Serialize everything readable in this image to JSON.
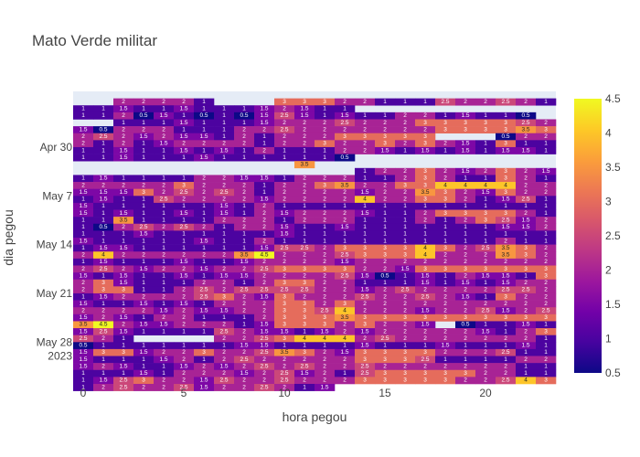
{
  "chart_data": {
    "type": "heatmap",
    "title": "Mato Verde militar",
    "xlabel": "hora pegou",
    "ylabel": "dia pegou",
    "x": [
      0,
      1,
      2,
      3,
      4,
      5,
      6,
      7,
      8,
      9,
      10,
      11,
      12,
      13,
      14,
      15,
      16,
      17,
      18,
      19,
      20,
      21,
      22,
      23
    ],
    "xlim": [
      -0.5,
      23.5
    ],
    "x_ticks": [
      0,
      5,
      10,
      15,
      20
    ],
    "y_tick_labels": [
      {
        "day": 30,
        "label": "Apr 30"
      },
      {
        "day": 37,
        "label": "May 7"
      },
      {
        "day": 44,
        "label": "May 14"
      },
      {
        "day": 51,
        "label": "May 21"
      },
      {
        "day": 58,
        "label": "May 28"
      },
      {
        "day": 58,
        "label": "2023"
      }
    ],
    "y_note": "days counted from Apr 0 (Apr 30 = 30, May 7 = 37)",
    "ylim_days": [
      22,
      64
    ],
    "colorscale": [
      "#0d0887",
      "#46039f",
      "#7201a8",
      "#9c179e",
      "#bd3786",
      "#d8576b",
      "#ed7953",
      "#fb9f3a",
      "#fdca26",
      "#f0f921"
    ],
    "zmin": 0.5,
    "zmax": 4.5,
    "colorbar_ticks": [
      "0.5",
      "1",
      "1.5",
      "2",
      "2.5",
      "3",
      "3.5",
      "4",
      "4.5"
    ],
    "rows": [
      {
        "day": 23.5,
        "v": [
          null,
          null,
          2,
          2,
          2,
          2,
          1,
          null,
          null,
          null,
          3,
          3,
          3,
          2,
          2,
          1,
          1,
          1,
          2.5,
          2,
          2,
          2.5,
          2,
          1
        ]
      },
      {
        "day": 24.5,
        "v": [
          1,
          1,
          1.5,
          1,
          1,
          1.5,
          1,
          1,
          1,
          1.5,
          2,
          1.5,
          1,
          1,
          null,
          null,
          null,
          null,
          null,
          null,
          null,
          null,
          null,
          null
        ]
      },
      {
        "day": 25.5,
        "v": [
          1,
          1,
          2,
          0.5,
          1.5,
          1,
          0.5,
          1,
          0.5,
          1.5,
          2.5,
          1.5,
          1,
          1.5,
          1,
          1,
          2,
          2,
          1,
          1.5,
          1,
          1,
          0.5,
          null
        ]
      },
      {
        "day": 26.5,
        "v": [
          null,
          null,
          1,
          1,
          1,
          1.5,
          1,
          1,
          1,
          1.5,
          2,
          2,
          2,
          2.5,
          2,
          2,
          2,
          3,
          3,
          3,
          3,
          3,
          2.5,
          2
        ]
      },
      {
        "day": 27.5,
        "v": [
          1.5,
          0.5,
          2,
          2,
          2,
          1,
          1,
          1,
          2,
          2,
          2.5,
          2,
          2,
          2,
          2,
          2,
          2,
          2,
          3,
          3,
          3,
          3,
          3.5,
          3
        ]
      },
      {
        "day": 28.5,
        "v": [
          2,
          2.5,
          2,
          1.5,
          2,
          1.5,
          1.5,
          1,
          2,
          1,
          2,
          2,
          2,
          3,
          3,
          3,
          3,
          3,
          null,
          null,
          null,
          0.5,
          2,
          2
        ]
      },
      {
        "day": 29.5,
        "v": [
          2,
          1,
          2,
          1,
          1.5,
          2,
          2,
          2,
          2,
          1,
          2,
          2,
          3,
          2,
          2,
          3,
          2,
          3,
          2,
          1.5,
          1,
          3,
          1,
          1
        ]
      },
      {
        "day": 30.5,
        "v": [
          1,
          1,
          1.5,
          1,
          1,
          1.5,
          1,
          1.5,
          1,
          2,
          1,
          1,
          1,
          2,
          2,
          1.5,
          1,
          1.5,
          1,
          1.5,
          1,
          1.5,
          1.5,
          1
        ]
      },
      {
        "day": 31.5,
        "v": [
          1,
          1,
          1.5,
          1,
          1,
          1,
          1.5,
          1,
          1,
          1,
          1,
          1,
          1,
          0.5,
          null,
          null,
          null,
          null,
          null,
          null,
          null,
          null,
          null,
          null
        ]
      },
      {
        "day": 32.5,
        "v": [
          null,
          null,
          null,
          null,
          null,
          null,
          null,
          null,
          null,
          null,
          null,
          3.5,
          null,
          null,
          null,
          null,
          null,
          null,
          null,
          null,
          null,
          null,
          null,
          null
        ]
      },
      {
        "day": 33.5,
        "v": [
          null,
          null,
          null,
          null,
          null,
          null,
          null,
          null,
          null,
          null,
          null,
          null,
          null,
          null,
          1,
          2,
          2,
          3,
          2,
          1.5,
          2,
          3,
          2,
          1.5
        ]
      },
      {
        "day": 34.5,
        "v": [
          1,
          1.5,
          1,
          1,
          1,
          1,
          2,
          2,
          1.5,
          1.5,
          1,
          2,
          2,
          2,
          1,
          1,
          2,
          3,
          2,
          1,
          1,
          3,
          2,
          1
        ]
      },
      {
        "day": 35.5,
        "v": [
          2,
          2,
          2,
          2,
          2,
          3,
          2,
          2,
          2,
          1,
          2,
          2,
          3,
          3.5,
          2,
          2,
          3,
          3,
          4,
          4,
          4,
          4,
          2,
          2
        ]
      },
      {
        "day": 36.5,
        "v": [
          1.5,
          1.5,
          1.5,
          3,
          2,
          2.5,
          2,
          2.5,
          2,
          1,
          2,
          2,
          2,
          2,
          1.5,
          2,
          2,
          3.5,
          3,
          2,
          1.5,
          3,
          2,
          2
        ]
      },
      {
        "day": 37.5,
        "v": [
          1,
          1.5,
          1,
          1,
          2.5,
          2,
          2,
          2,
          2,
          1.5,
          2,
          2,
          2,
          2,
          4,
          2,
          2,
          3,
          3,
          2,
          1,
          1.5,
          2.5,
          1
        ]
      },
      {
        "day": 38.5,
        "v": [
          1.5,
          1,
          1,
          1,
          1,
          1,
          1,
          1.5,
          1,
          2,
          1,
          1,
          1,
          1,
          1,
          1,
          1,
          1,
          1,
          1,
          1,
          1,
          1,
          1
        ]
      },
      {
        "day": 39.5,
        "v": [
          1.5,
          1,
          1.5,
          1,
          1,
          1.5,
          1,
          1.5,
          1,
          2,
          1.5,
          2,
          2,
          2,
          1.5,
          1,
          1,
          2,
          3,
          3,
          3,
          3,
          2,
          1
        ]
      },
      {
        "day": 40.5,
        "v": [
          1,
          1,
          3.5,
          1,
          1,
          1,
          1,
          2,
          2,
          2,
          1,
          2,
          2,
          2,
          1,
          1,
          1,
          2,
          1,
          2,
          3,
          2.5,
          1.5,
          2
        ]
      },
      {
        "day": 41.5,
        "v": [
          1,
          0.5,
          2,
          2.5,
          2,
          2.5,
          2,
          1,
          2,
          2,
          1.5,
          1,
          1,
          1.5,
          1,
          1,
          1,
          1,
          1,
          1,
          1,
          1.5,
          1.5,
          2
        ]
      },
      {
        "day": 42.5,
        "v": [
          1,
          1,
          1,
          1.5,
          1,
          1,
          1,
          1,
          1,
          1,
          1.5,
          1,
          1,
          1,
          1,
          1,
          1,
          1,
          1,
          1,
          1,
          1,
          1,
          1
        ]
      },
      {
        "day": 43.5,
        "v": [
          1.5,
          1,
          1,
          1,
          1,
          1,
          1.5,
          1,
          1,
          2,
          1,
          1,
          1,
          1,
          1,
          1,
          1,
          1,
          1,
          1,
          1,
          2,
          1,
          1
        ]
      },
      {
        "day": 44.5,
        "v": [
          1,
          1.5,
          1.5,
          1,
          1,
          1,
          1,
          1,
          1,
          1.5,
          2.5,
          2.5,
          2,
          3,
          3,
          3,
          3,
          4,
          3,
          2,
          2.5,
          3.5,
          3,
          2
        ]
      },
      {
        "day": 45.5,
        "v": [
          2,
          4,
          2,
          2,
          2,
          2,
          2,
          2,
          3.5,
          4.5,
          2,
          2,
          2,
          2.5,
          3,
          3,
          3,
          4,
          2,
          2,
          2,
          3.5,
          3,
          2
        ]
      },
      {
        "day": 46.5,
        "v": [
          1,
          1.5,
          1,
          1,
          1,
          1.5,
          1,
          1,
          1.5,
          2,
          2,
          2,
          2,
          1.5,
          2,
          2,
          2,
          2,
          2,
          2,
          2,
          2,
          2,
          2
        ]
      },
      {
        "day": 47.5,
        "v": [
          2,
          2.5,
          2,
          1.5,
          2,
          2,
          1.5,
          2,
          2,
          2.5,
          3,
          3,
          3,
          3,
          2,
          2,
          1.5,
          3,
          3,
          3,
          3,
          3,
          3,
          3
        ]
      },
      {
        "day": 48.5,
        "v": [
          1.5,
          1,
          1.5,
          1,
          1,
          1.5,
          1,
          1.5,
          1.5,
          2,
          2,
          2,
          2,
          2.5,
          1.5,
          0.5,
          1,
          1.5,
          1,
          2,
          1.5,
          1.5,
          1,
          3
        ]
      },
      {
        "day": 49.5,
        "v": [
          2,
          3,
          1.5,
          1,
          1,
          1,
          2,
          2,
          1,
          2,
          3,
          3,
          2,
          2,
          1,
          1,
          1,
          1.5,
          1,
          1.5,
          1,
          1.5,
          2,
          2
        ]
      },
      {
        "day": 50.5,
        "v": [
          2,
          3,
          3,
          1,
          1,
          2,
          2.5,
          2,
          2.5,
          2.5,
          2.5,
          2.5,
          2,
          2,
          1.5,
          2,
          2.5,
          2,
          2,
          2,
          2,
          2.5,
          2.5,
          2
        ]
      },
      {
        "day": 51.5,
        "v": [
          1,
          1.5,
          2,
          2,
          2,
          2,
          2.5,
          3,
          2,
          1.5,
          3,
          2,
          2,
          2,
          2.5,
          2,
          2,
          2.5,
          2,
          1.5,
          1,
          3,
          2,
          2
        ]
      },
      {
        "day": 52.5,
        "v": [
          1.5,
          1,
          1,
          1.5,
          1,
          1.5,
          1,
          2,
          2,
          2,
          3,
          3,
          2,
          3,
          2,
          2,
          2,
          2,
          2,
          2,
          2,
          2,
          2,
          2
        ]
      },
      {
        "day": 53.5,
        "v": [
          2,
          2,
          2,
          2,
          1.5,
          2,
          1.5,
          1.5,
          2,
          2,
          3,
          3,
          2.5,
          4,
          2,
          2,
          2,
          1.5,
          2,
          2,
          2.5,
          1.5,
          2,
          2.5
        ]
      },
      {
        "day": 54.5,
        "v": [
          1.5,
          2,
          1.5,
          1,
          2,
          2,
          1,
          1,
          1,
          2,
          3,
          3,
          3,
          3.5,
          3,
          3,
          3,
          3,
          3,
          3,
          3,
          3,
          3,
          3
        ]
      },
      {
        "day": 55.5,
        "v": [
          3.5,
          4.5,
          2,
          1.5,
          1.5,
          2,
          2,
          2,
          1,
          1.5,
          3,
          3,
          3,
          2,
          3,
          2,
          2,
          1.5,
          null,
          0.5,
          1,
          1,
          1.5,
          1
        ]
      },
      {
        "day": 56.5,
        "v": [
          1.5,
          2.5,
          1.5,
          1,
          1,
          1,
          1,
          2.5,
          2,
          1.5,
          1.5,
          1,
          1.5,
          2,
          1.5,
          2,
          2,
          2,
          2,
          2,
          1.5,
          1,
          2,
          3
        ]
      },
      {
        "day": 57.5,
        "v": [
          2.5,
          2,
          1,
          null,
          null,
          null,
          null,
          2,
          2,
          2.5,
          3,
          4,
          4,
          4,
          2,
          2.5,
          2,
          2,
          2,
          2,
          2,
          2,
          2,
          1
        ]
      },
      {
        "day": 58.5,
        "v": [
          0.5,
          1,
          1,
          1,
          1,
          1,
          1,
          1,
          1.5,
          1.5,
          1,
          1,
          1,
          1,
          1.5,
          1,
          1,
          1,
          1.5,
          1,
          1,
          1,
          1.5,
          1
        ]
      },
      {
        "day": 59.5,
        "v": [
          1.5,
          3,
          3,
          1.5,
          2,
          2,
          3,
          2,
          2,
          2.5,
          3.5,
          3,
          2,
          1.5,
          3,
          3,
          3,
          3,
          2,
          2,
          2,
          2.5,
          1,
          1
        ]
      },
      {
        "day": 60.5,
        "v": [
          1.5,
          1,
          1,
          1,
          1.5,
          2,
          1,
          2,
          2.5,
          2,
          2,
          2,
          2,
          2,
          3,
          3,
          3,
          2.5,
          1,
          1,
          1,
          1,
          2,
          2
        ]
      },
      {
        "day": 61.5,
        "v": [
          1.5,
          2,
          1.5,
          1,
          1,
          1.5,
          2,
          1.5,
          2,
          2.5,
          2,
          2.5,
          2,
          2,
          2.5,
          2,
          2,
          2,
          2,
          2,
          2,
          2,
          1,
          1
        ]
      },
      {
        "day": 62.5,
        "v": [
          1,
          1,
          1,
          1.5,
          1,
          2,
          2,
          2,
          1.5,
          2,
          2.5,
          1.5,
          2,
          1,
          2.5,
          3,
          3,
          3,
          3,
          3,
          2,
          2,
          1,
          1
        ]
      },
      {
        "day": 63.5,
        "v": [
          1,
          1.5,
          2.5,
          3,
          2,
          2,
          1.5,
          2.5,
          2,
          2,
          2.5,
          2,
          2,
          2,
          3,
          3,
          3,
          3,
          3,
          2,
          2,
          2.5,
          4,
          3
        ]
      },
      {
        "day": 64.5,
        "v": [
          1,
          2,
          2.5,
          2,
          2,
          2.5,
          1.5,
          2,
          2,
          2.5,
          2,
          1,
          1.5,
          null,
          null,
          null,
          null,
          null,
          null,
          null,
          null,
          null,
          null,
          null
        ]
      }
    ]
  }
}
